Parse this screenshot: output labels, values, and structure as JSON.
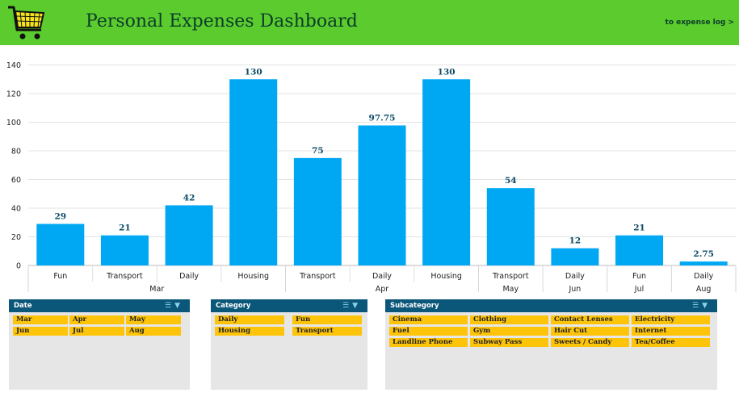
{
  "header": {
    "title": "Personal Expenses Dashboard",
    "link": "to expense log >",
    "bg_color": "#5ccb2e",
    "icon": "shopping-cart-icon"
  },
  "chart_data": {
    "type": "bar",
    "categories": [
      "Fun",
      "Transport",
      "Daily",
      "Housing",
      "Transport",
      "Daily",
      "Housing",
      "Transport",
      "Daily",
      "Fun",
      "Daily"
    ],
    "groups": [
      {
        "label": "Mar",
        "span": 4
      },
      {
        "label": "Apr",
        "span": 3
      },
      {
        "label": "May",
        "span": 1
      },
      {
        "label": "Jun",
        "span": 1
      },
      {
        "label": "Jul",
        "span": 1
      },
      {
        "label": "Aug",
        "span": 1
      }
    ],
    "values": [
      29,
      21,
      42,
      130,
      75,
      97.75,
      130,
      54,
      12,
      21,
      2.75
    ],
    "data_labels": [
      "29",
      "21",
      "42",
      "130",
      "75",
      "97.75",
      "130",
      "54",
      "12",
      "21",
      "2.75"
    ],
    "yticks": [
      "0",
      "20",
      "40",
      "60",
      "80",
      "100",
      "120",
      "140"
    ],
    "ylim": [
      0,
      140
    ],
    "grid": true,
    "bar_color": "#00a8f3",
    "label_color": "#0b4a66"
  },
  "slicers": {
    "date": {
      "title": "Date",
      "items": [
        "Mar",
        "Apr",
        "May",
        "Jun",
        "Jul",
        "Aug"
      ]
    },
    "category": {
      "title": "Category",
      "items": [
        "Daily",
        "Fun",
        "Housing",
        "Transport"
      ]
    },
    "subcategory": {
      "title": "Subcategory",
      "items": [
        "Cinema",
        "Clothing",
        "Contact Lenses",
        "Electricity",
        "Fuel",
        "Gym",
        "Hair Cut",
        "Internet",
        "Landline Phone",
        "Subway Pass",
        "Sweets / Candy",
        "Tea/Coffee"
      ]
    }
  }
}
